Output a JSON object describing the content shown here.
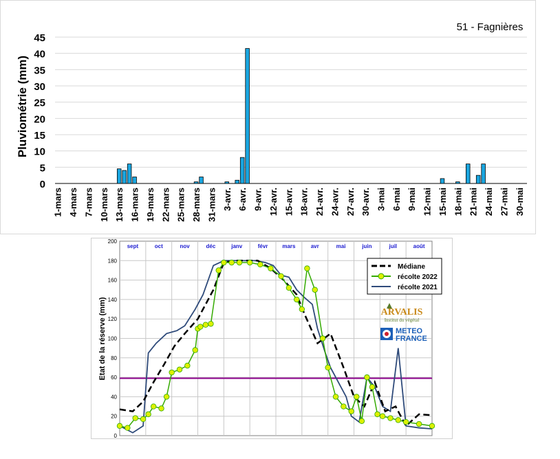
{
  "chart_data": [
    {
      "type": "bar",
      "title": "51 - Fagnières",
      "ylabel": "Pluviométrie (mm)",
      "xlabel": "",
      "ylim": [
        0,
        45
      ],
      "yticks": [
        "0",
        "5",
        "10",
        "15",
        "20",
        "25",
        "30",
        "35",
        "40",
        "45"
      ],
      "grid": true,
      "bar_color": "#1aa6e0",
      "xtick_labels": [
        "1-mars",
        "4-mars",
        "7-mars",
        "10-mars",
        "13-mars",
        "16-mars",
        "19-mars",
        "22-mars",
        "25-mars",
        "28-mars",
        "31-mars",
        "3-avr.",
        "6-avr.",
        "9-avr.",
        "12-avr.",
        "15-avr.",
        "18-avr.",
        "21-avr.",
        "24-avr.",
        "27-avr.",
        "30-avr.",
        "3-mai",
        "6-mai",
        "9-mai",
        "12-mai",
        "15-mai",
        "18-mai",
        "21-mai",
        "24-mai",
        "27-mai",
        "30-mai"
      ],
      "categories": [
        "1-mars",
        "2-mars",
        "3-mars",
        "4-mars",
        "5-mars",
        "6-mars",
        "7-mars",
        "8-mars",
        "9-mars",
        "10-mars",
        "11-mars",
        "12-mars",
        "13-mars",
        "14-mars",
        "15-mars",
        "16-mars",
        "17-mars",
        "18-mars",
        "19-mars",
        "20-mars",
        "21-mars",
        "22-mars",
        "23-mars",
        "24-mars",
        "25-mars",
        "26-mars",
        "27-mars",
        "28-mars",
        "29-mars",
        "30-mars",
        "31-mars",
        "1-avr.",
        "2-avr.",
        "3-avr.",
        "4-avr.",
        "5-avr.",
        "6-avr.",
        "7-avr.",
        "8-avr.",
        "9-avr.",
        "10-avr.",
        "11-avr.",
        "12-avr.",
        "13-avr.",
        "14-avr.",
        "15-avr.",
        "16-avr.",
        "17-avr.",
        "18-avr.",
        "19-avr.",
        "20-avr.",
        "21-avr.",
        "22-avr.",
        "23-avr.",
        "24-avr.",
        "25-avr.",
        "26-avr.",
        "27-avr.",
        "28-avr.",
        "29-avr.",
        "30-avr.",
        "1-mai",
        "2-mai",
        "3-mai",
        "4-mai",
        "5-mai",
        "6-mai",
        "7-mai",
        "8-mai",
        "9-mai",
        "10-mai",
        "11-mai",
        "12-mai",
        "13-mai",
        "14-mai",
        "15-mai",
        "16-mai",
        "17-mai",
        "18-mai",
        "19-mai",
        "20-mai",
        "21-mai",
        "22-mai",
        "23-mai",
        "24-mai",
        "25-mai",
        "26-mai",
        "27-mai",
        "28-mai",
        "29-mai",
        "30-mai",
        "31-mai"
      ],
      "values": [
        0,
        0,
        0,
        0,
        0,
        0,
        0,
        0,
        0,
        0,
        0,
        0,
        4.5,
        4,
        6,
        2,
        0,
        0,
        0,
        0,
        0,
        0,
        0,
        0,
        0,
        0,
        0,
        0.5,
        2,
        0,
        0,
        0,
        0,
        0.5,
        0,
        1,
        8,
        41.5,
        0,
        0,
        0,
        0,
        0,
        0,
        0,
        0,
        0,
        0,
        0,
        0,
        0,
        0,
        0,
        0,
        0,
        0,
        0,
        0,
        0,
        0,
        0,
        0,
        0,
        0,
        0,
        0,
        0,
        0,
        0,
        0,
        0,
        0,
        0,
        0,
        0,
        1.5,
        0,
        0,
        0.5,
        0,
        6,
        0,
        2.5,
        6,
        0,
        0,
        0,
        0,
        0,
        0,
        0,
        0
      ]
    },
    {
      "type": "line",
      "xlabel": "",
      "ylabel": "Etat de la réserve (mm)",
      "ylim": [
        0,
        200
      ],
      "yticks": [
        "0",
        "20",
        "40",
        "60",
        "80",
        "100",
        "120",
        "140",
        "160",
        "180",
        "200"
      ],
      "months": [
        "sept",
        "oct",
        "nov",
        "déc",
        "janv",
        "févr",
        "mars",
        "avr",
        "mai",
        "juin",
        "juil",
        "août"
      ],
      "xlim": [
        0,
        12
      ],
      "grid": true,
      "legend_position": "top-right",
      "threshold": 59,
      "threshold_color": "#8b008b",
      "logos": [
        "ARVALIS",
        "Institut du végétal",
        "METEO",
        "FRANCE"
      ],
      "series": [
        {
          "name": "Médiane",
          "color": "#000000",
          "x": [
            0,
            0.5,
            0.9,
            1.3,
            1.7,
            2.1,
            2.5,
            3.0,
            3.6,
            4.0,
            4.4,
            4.9,
            5.3,
            5.8,
            6.3,
            6.8,
            7.1,
            7.6,
            8.1,
            8.6,
            9.0,
            9.4,
            9.8,
            10.2,
            10.6,
            11.0,
            11.5,
            12.0
          ],
          "y": [
            27,
            25,
            35,
            55,
            73,
            92,
            105,
            120,
            150,
            178,
            180,
            180,
            180,
            172,
            160,
            145,
            125,
            95,
            105,
            70,
            40,
            30,
            55,
            25,
            30,
            10,
            22,
            21
          ]
        },
        {
          "name": "récolte 2022",
          "color": "#33aa00",
          "marker_fill": "#ddf000",
          "x": [
            0,
            0.3,
            0.6,
            0.9,
            1.1,
            1.3,
            1.6,
            1.8,
            2.0,
            2.3,
            2.6,
            2.9,
            3.0,
            3.1,
            3.3,
            3.5,
            3.8,
            4.0,
            4.3,
            4.6,
            5.0,
            5.4,
            5.8,
            6.2,
            6.5,
            6.8,
            7.0,
            7.2,
            7.5,
            7.8,
            8.0,
            8.3,
            8.6,
            8.9,
            9.1,
            9.3,
            9.5,
            9.7,
            9.9,
            10.1,
            10.4,
            10.7,
            11.0,
            11.5,
            12.0
          ],
          "y": [
            10,
            8,
            18,
            17,
            22,
            30,
            28,
            40,
            65,
            68,
            72,
            88,
            110,
            112,
            114,
            115,
            170,
            178,
            178,
            178,
            178,
            176,
            172,
            164,
            152,
            140,
            130,
            172,
            150,
            100,
            70,
            40,
            30,
            25,
            40,
            15,
            60,
            50,
            22,
            20,
            18,
            16,
            14,
            12,
            10
          ]
        },
        {
          "name": "récolte 2021",
          "color": "#2e4a7a",
          "x": [
            0,
            0.5,
            0.9,
            1.1,
            1.4,
            1.8,
            2.2,
            2.5,
            2.9,
            3.2,
            3.6,
            4.0,
            4.4,
            4.8,
            5.2,
            5.6,
            5.9,
            6.2,
            6.5,
            6.8,
            7.1,
            7.4,
            7.6,
            7.9,
            8.1,
            8.4,
            8.7,
            8.9,
            9.2,
            9.5,
            9.8,
            10.1,
            10.4,
            10.7,
            11.0,
            11.5,
            12.0
          ],
          "y": [
            10,
            3,
            10,
            85,
            95,
            105,
            108,
            113,
            130,
            145,
            175,
            180,
            180,
            180,
            180,
            178,
            175,
            165,
            163,
            150,
            142,
            135,
            110,
            85,
            70,
            55,
            40,
            20,
            14,
            60,
            50,
            30,
            25,
            90,
            10,
            8,
            7
          ]
        }
      ]
    }
  ]
}
